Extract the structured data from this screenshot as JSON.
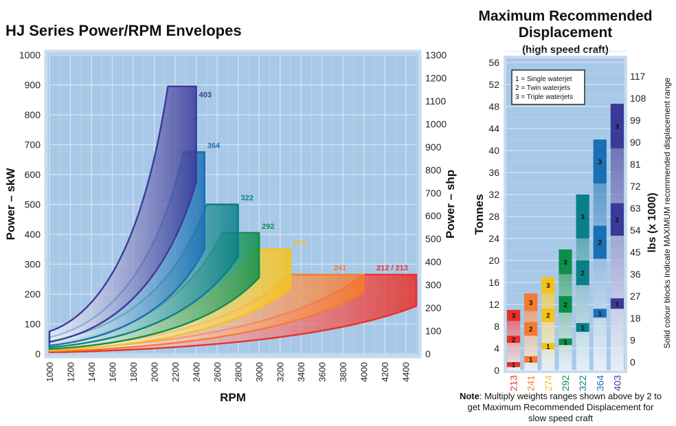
{
  "chart_data": [
    {
      "type": "area",
      "title": "HJ Series Power/RPM Envelopes",
      "xlabel": "RPM",
      "ylabel": "Power – skW",
      "y2label": "Power – shp",
      "xlim": [
        1000,
        4500
      ],
      "ylim": [
        0,
        1000
      ],
      "y2lim": [
        0,
        1300
      ],
      "xticks": [
        1000,
        1200,
        1400,
        1600,
        1800,
        2000,
        2200,
        2400,
        2600,
        2800,
        3000,
        3200,
        3400,
        3600,
        3800,
        4000,
        4200,
        4400
      ],
      "yticks": [
        0,
        100,
        200,
        300,
        400,
        500,
        600,
        700,
        800,
        900,
        1000
      ],
      "y2ticks": [
        0,
        100,
        200,
        300,
        400,
        500,
        600,
        700,
        800,
        900,
        1000,
        1100,
        1200,
        1300
      ],
      "grid": true,
      "series": [
        {
          "name": "212 / 213",
          "color": "#e8302a",
          "upper": [
            [
              1000,
              15
            ],
            [
              4000,
              265
            ],
            [
              4500,
              265
            ]
          ],
          "lower": [
            [
              1000,
              5
            ],
            [
              4500,
              160
            ]
          ]
        },
        {
          "name": "241",
          "color": "#f47a2e",
          "upper": [
            [
              1000,
              20
            ],
            [
              3300,
              265
            ],
            [
              4000,
              265
            ]
          ],
          "lower": [
            [
              1000,
              8
            ],
            [
              4000,
              205
            ]
          ]
        },
        {
          "name": "274",
          "color": "#f4c21c",
          "upper": [
            [
              1000,
              28
            ],
            [
              2960,
              350
            ],
            [
              3300,
              350
            ]
          ],
          "lower": [
            [
              1000,
              12
            ],
            [
              3300,
              220
            ]
          ]
        },
        {
          "name": "292",
          "color": "#0d8e4b",
          "upper": [
            [
              1000,
              35
            ],
            [
              2650,
              405
            ],
            [
              3000,
              405
            ]
          ],
          "lower": [
            [
              1000,
              16
            ],
            [
              3000,
              255
            ]
          ]
        },
        {
          "name": "322",
          "color": "#0a7f8a",
          "upper": [
            [
              1000,
              45
            ],
            [
              2500,
              500
            ],
            [
              2800,
              500
            ]
          ],
          "lower": [
            [
              1000,
              22
            ],
            [
              2800,
              325
            ]
          ]
        },
        {
          "name": "364",
          "color": "#1a6fb5",
          "upper": [
            [
              1000,
              55
            ],
            [
              2280,
              675
            ],
            [
              2480,
              675
            ]
          ],
          "lower": [
            [
              1000,
              28
            ],
            [
              2480,
              350
            ]
          ]
        },
        {
          "name": "403",
          "color": "#3a3a98",
          "upper": [
            [
              1000,
              75
            ],
            [
              2130,
              895
            ],
            [
              2400,
              895
            ]
          ],
          "lower": [
            [
              1000,
              40
            ],
            [
              2400,
              575
            ]
          ]
        }
      ]
    },
    {
      "type": "bar",
      "title": "Maximum Recommended Displacement",
      "subtitle": "(high speed craft)",
      "ylabel": "Tonnes",
      "y2label": "lbs (x 1000)",
      "side_note": "Solid colour blocks indicate MAXIMUM recommended displacement range",
      "ylim": [
        0,
        56
      ],
      "yticks": [
        0,
        4,
        8,
        12,
        16,
        20,
        24,
        28,
        32,
        36,
        40,
        44,
        48,
        52,
        56
      ],
      "y2ticks": [
        0,
        9,
        18,
        27,
        36,
        45,
        54,
        63,
        72,
        81,
        90,
        99,
        108,
        117
      ],
      "legend": [
        "1 = Single waterjet",
        "2 = Twin waterjets",
        "3 = Triple waterjets"
      ],
      "grid": true,
      "categories": [
        "213",
        "241",
        "274",
        "292",
        "322",
        "364",
        "403"
      ],
      "colors": [
        "#e8302a",
        "#f47a2e",
        "#f4c21c",
        "#0d8e4b",
        "#0a7f8a",
        "#1a6fb5",
        "#3a3a98"
      ],
      "column_top": [
        11,
        14,
        17,
        22,
        32,
        42,
        48
      ],
      "blocks": [
        [
          {
            "label": "1",
            "from": 0.6,
            "to": 1.5
          },
          {
            "label": "2",
            "from": 5.0,
            "to": 6.3
          },
          {
            "label": "3",
            "from": 9.0,
            "to": 11.0
          }
        ],
        [
          {
            "label": "1",
            "from": 1.4,
            "to": 2.6
          },
          {
            "label": "2",
            "from": 6.3,
            "to": 8.8
          },
          {
            "label": "3",
            "from": 10.8,
            "to": 14.0
          }
        ],
        [
          {
            "label": "1",
            "from": 3.8,
            "to": 5.0
          },
          {
            "label": "2",
            "from": 8.8,
            "to": 11.3
          },
          {
            "label": "3",
            "from": 14.0,
            "to": 17.0
          }
        ],
        [
          {
            "label": "1",
            "from": 4.6,
            "to": 5.8
          },
          {
            "label": "2",
            "from": 10.5,
            "to": 13.5
          },
          {
            "label": "3",
            "from": 17.5,
            "to": 22.0
          }
        ],
        [
          {
            "label": "1",
            "from": 7.0,
            "to": 8.6
          },
          {
            "label": "2",
            "from": 15.5,
            "to": 20.0
          },
          {
            "label": "3",
            "from": 24.0,
            "to": 32.0
          }
        ],
        [
          {
            "label": "1",
            "from": 9.6,
            "to": 11.2
          },
          {
            "label": "2",
            "from": 20.3,
            "to": 26.3
          },
          {
            "label": "3",
            "from": 34.0,
            "to": 42.0
          }
        ],
        [
          {
            "label": "1",
            "from": 11.2,
            "to": 13.1
          },
          {
            "label": "2",
            "from": 24.5,
            "to": 30.4
          },
          {
            "label": "3",
            "from": 40.4,
            "to": 48.5
          }
        ]
      ],
      "note_bold": "Note",
      "note_text": ": Multiply weights ranges shown above by 2 to get Maximum Recommended Displacement for slow speed craft"
    }
  ]
}
